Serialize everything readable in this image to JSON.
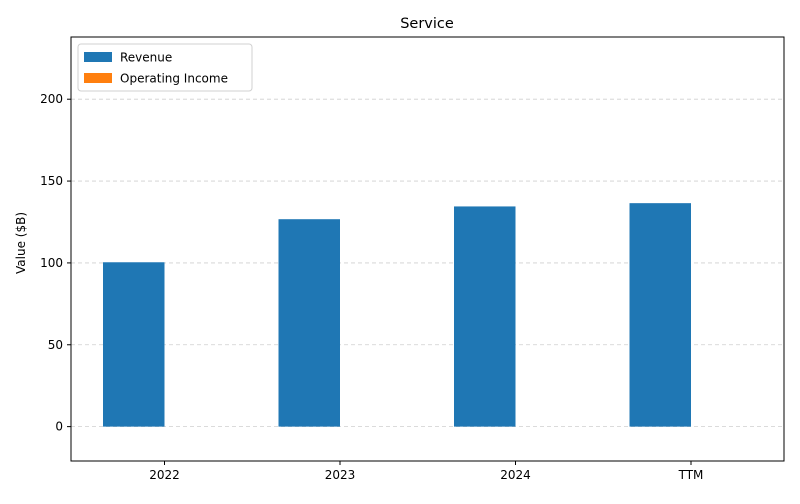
{
  "chart_data": {
    "type": "bar",
    "title": "Service",
    "xlabel": "",
    "ylabel": "Value ($B)",
    "categories": [
      "2022",
      "2023",
      "2024",
      "TTM"
    ],
    "series": [
      {
        "name": "Revenue",
        "color": "#1f77b4",
        "values": [
          100.4,
          126.7,
          134.5,
          136.5
        ]
      },
      {
        "name": "Operating Income",
        "color": "#ff7f0e",
        "values": [
          0,
          0,
          0,
          0
        ]
      }
    ],
    "ylim": [
      -21,
      238
    ],
    "yticks": [
      0,
      50,
      100,
      150,
      200
    ],
    "grid": "y-dashed",
    "legend": "top-left"
  }
}
